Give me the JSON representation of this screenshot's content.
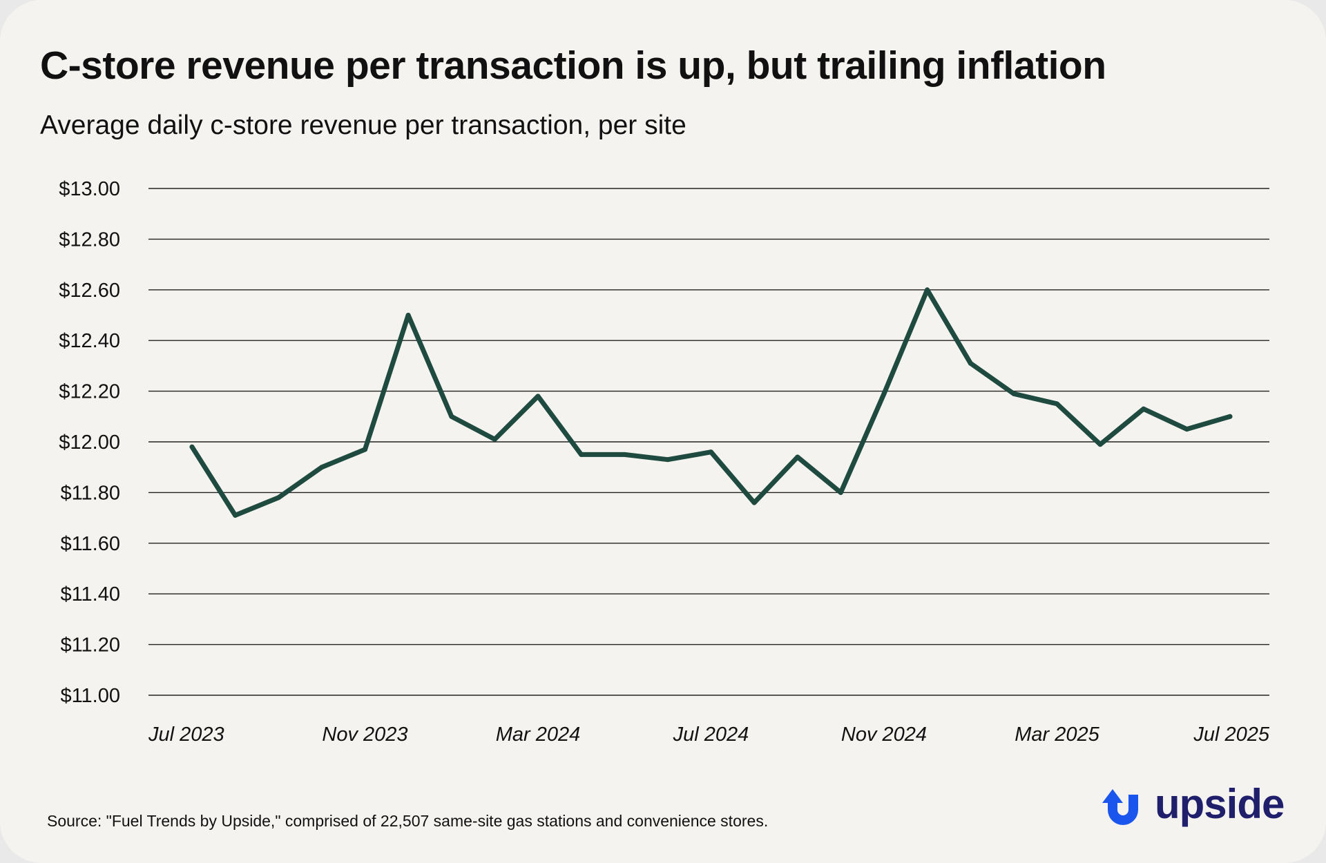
{
  "title": "C-store revenue per transaction is up, but trailing inflation",
  "subtitle": "Average daily c-store revenue per transaction, per site",
  "source": "Source: \"Fuel Trends by Upside,\" comprised of 22,507 same-site gas stations and convenience stores.",
  "logo": {
    "text": "upside",
    "icon": "upside-arrow-icon"
  },
  "colors": {
    "background": "#f5f3ef",
    "line": "#1e4a3f",
    "grid": "#222222",
    "text": "#111111",
    "logo_blue": "#1a56ee",
    "logo_text": "#1f1f6b"
  },
  "chart_data": {
    "type": "line",
    "title": "C-store revenue per transaction is up, but trailing inflation",
    "subtitle": "Average daily c-store revenue per transaction, per site",
    "xlabel": "",
    "ylabel": "",
    "ylim": [
      11.0,
      13.0
    ],
    "yticks": [
      13.0,
      12.8,
      12.6,
      12.4,
      12.2,
      12.0,
      11.8,
      11.6,
      11.4,
      11.2,
      11.0
    ],
    "ytick_labels": [
      "$13.00",
      "$12.80",
      "$12.60",
      "$12.40",
      "$12.20",
      "$12.00",
      "$11.80",
      "$11.60",
      "$11.40",
      "$11.20",
      "$11.00"
    ],
    "x_tick_labels": [
      "Jul 2023",
      "Nov 2023",
      "Mar 2024",
      "Jul 2024",
      "Nov 2024",
      "Mar 2025",
      "Jul 2025"
    ],
    "x_tick_indices": [
      0,
      4,
      8,
      12,
      16,
      20,
      24
    ],
    "grid": true,
    "legend": "none",
    "series": [
      {
        "name": "Average daily c-store revenue per transaction",
        "categories": [
          "Jul 2023",
          "Aug 2023",
          "Sep 2023",
          "Oct 2023",
          "Nov 2023",
          "Dec 2023",
          "Jan 2024",
          "Feb 2024",
          "Mar 2024",
          "Apr 2024",
          "May 2024",
          "Jun 2024",
          "Jul 2024",
          "Aug 2024",
          "Sep 2024",
          "Oct 2024",
          "Nov 2024",
          "Dec 2024",
          "Jan 2025",
          "Feb 2025",
          "Mar 2025",
          "Apr 2025",
          "May 2025",
          "Jun 2025",
          "Jul 2025"
        ],
        "values": [
          11.98,
          11.71,
          11.78,
          11.9,
          11.97,
          12.5,
          12.1,
          12.01,
          12.18,
          11.95,
          11.95,
          11.93,
          11.96,
          11.76,
          11.94,
          11.8,
          12.19,
          12.6,
          12.31,
          12.19,
          12.15,
          11.99,
          12.13,
          12.05,
          12.1
        ]
      }
    ]
  }
}
